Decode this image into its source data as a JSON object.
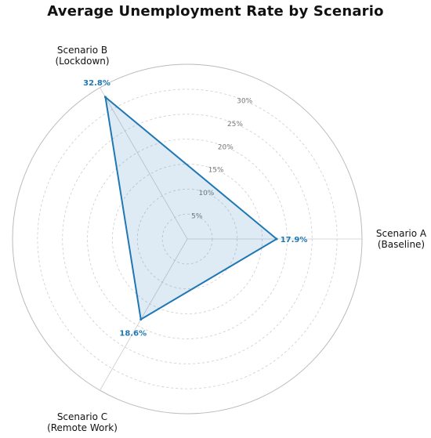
{
  "chart_data": {
    "type": "radar",
    "title": "Average Unemployment Rate by Scenario",
    "categories": [
      {
        "line1": "Scenario A",
        "line2": "(Baseline)",
        "value": 17.9,
        "value_label": "17.9%"
      },
      {
        "line1": "Scenario B",
        "line2": "(Lockdown)",
        "value": 32.8,
        "value_label": "32.8%"
      },
      {
        "line1": "Scenario C",
        "line2": "(Remote Work)",
        "value": 18.6,
        "value_label": "18.6%"
      }
    ],
    "radial_ticks": [
      5,
      10,
      15,
      20,
      25,
      30
    ],
    "radial_tick_labels": [
      "5%",
      "10%",
      "15%",
      "20%",
      "25%",
      "30%"
    ],
    "r_max": 35,
    "grid": true,
    "series_color": "#1f77b4",
    "fill_color": "#1f77b4"
  }
}
